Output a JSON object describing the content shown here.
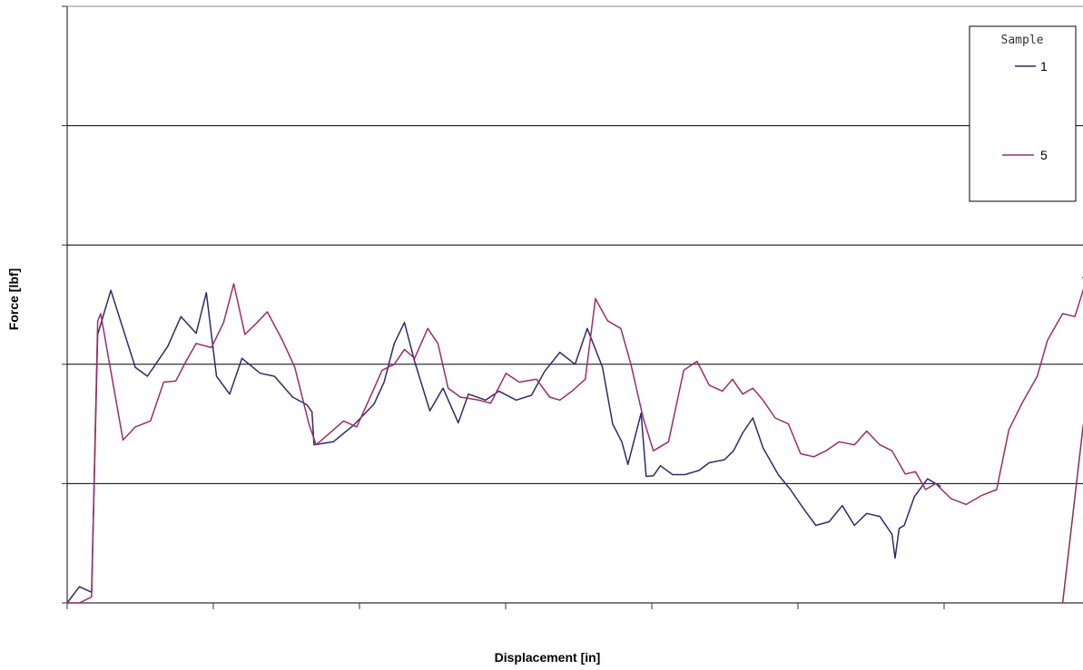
{
  "chart_data": {
    "type": "line",
    "title": "",
    "xlabel": "Displacement [in]",
    "ylabel": "Force [lbf]",
    "xlim": [
      0,
      1000
    ],
    "ylim": [
      0,
      1000
    ],
    "x_tick_count": 7,
    "y_gridlines": 4,
    "grid": "horizontal",
    "legend": {
      "title": "Sample",
      "placement": "top-right",
      "entries": [
        "1",
        "5"
      ]
    },
    "series": [
      {
        "name": "1",
        "color": "#2f2b6b",
        "points": [
          [
            0,
            0
          ],
          [
            12,
            27
          ],
          [
            24,
            18
          ],
          [
            30,
            450
          ],
          [
            43,
            524
          ],
          [
            67,
            395
          ],
          [
            79,
            380
          ],
          [
            99,
            430
          ],
          [
            112,
            480
          ],
          [
            127,
            452
          ],
          [
            137,
            520
          ],
          [
            147,
            380
          ],
          [
            160,
            350
          ],
          [
            172,
            410
          ],
          [
            190,
            385
          ],
          [
            204,
            380
          ],
          [
            222,
            345
          ],
          [
            236,
            332
          ],
          [
            241,
            320
          ],
          [
            243,
            265
          ],
          [
            262,
            270
          ],
          [
            282,
            298
          ],
          [
            302,
            333
          ],
          [
            312,
            370
          ],
          [
            322,
            435
          ],
          [
            332,
            470
          ],
          [
            342,
            405
          ],
          [
            357,
            322
          ],
          [
            370,
            360
          ],
          [
            385,
            302
          ],
          [
            395,
            350
          ],
          [
            412,
            340
          ],
          [
            425,
            355
          ],
          [
            442,
            340
          ],
          [
            457,
            348
          ],
          [
            470,
            388
          ],
          [
            485,
            420
          ],
          [
            500,
            400
          ],
          [
            512,
            460
          ],
          [
            527,
            395
          ],
          [
            537,
            300
          ],
          [
            546,
            270
          ],
          [
            552,
            232
          ],
          [
            565,
            318
          ],
          [
            570,
            212
          ],
          [
            577,
            213
          ],
          [
            584,
            230
          ],
          [
            596,
            215
          ],
          [
            608,
            215
          ],
          [
            622,
            222
          ],
          [
            632,
            235
          ],
          [
            647,
            240
          ],
          [
            656,
            255
          ],
          [
            665,
            285
          ],
          [
            675,
            310
          ],
          [
            685,
            260
          ],
          [
            700,
            215
          ],
          [
            712,
            190
          ],
          [
            724,
            160
          ],
          [
            737,
            130
          ],
          [
            750,
            136
          ],
          [
            763,
            163
          ],
          [
            775,
            130
          ],
          [
            787,
            150
          ],
          [
            800,
            145
          ],
          [
            812,
            115
          ],
          [
            815,
            75
          ],
          [
            819,
            125
          ],
          [
            824,
            130
          ],
          [
            834,
            178
          ],
          [
            847,
            208
          ],
          [
            860,
            195
          ]
        ]
      },
      {
        "name": "5",
        "color": "#9b2d6a",
        "points": [
          [
            0,
            0
          ],
          [
            12,
            0
          ],
          [
            24,
            10
          ],
          [
            30,
            472
          ],
          [
            33,
            485
          ],
          [
            55,
            273
          ],
          [
            67,
            295
          ],
          [
            82,
            305
          ],
          [
            95,
            370
          ],
          [
            107,
            372
          ],
          [
            117,
            405
          ],
          [
            127,
            435
          ],
          [
            142,
            428
          ],
          [
            154,
            470
          ],
          [
            164,
            535
          ],
          [
            175,
            450
          ],
          [
            187,
            470
          ],
          [
            197,
            488
          ],
          [
            212,
            440
          ],
          [
            224,
            395
          ],
          [
            238,
            300
          ],
          [
            245,
            265
          ],
          [
            262,
            290
          ],
          [
            272,
            305
          ],
          [
            285,
            295
          ],
          [
            297,
            340
          ],
          [
            310,
            390
          ],
          [
            322,
            400
          ],
          [
            332,
            425
          ],
          [
            342,
            410
          ],
          [
            355,
            460
          ],
          [
            365,
            435
          ],
          [
            375,
            360
          ],
          [
            387,
            345
          ],
          [
            405,
            340
          ],
          [
            417,
            335
          ],
          [
            432,
            385
          ],
          [
            445,
            370
          ],
          [
            462,
            375
          ],
          [
            475,
            345
          ],
          [
            485,
            340
          ],
          [
            497,
            355
          ],
          [
            510,
            375
          ],
          [
            520,
            510
          ],
          [
            532,
            473
          ],
          [
            545,
            460
          ],
          [
            555,
            400
          ],
          [
            567,
            310
          ],
          [
            577,
            255
          ],
          [
            592,
            270
          ],
          [
            607,
            390
          ],
          [
            620,
            405
          ],
          [
            632,
            365
          ],
          [
            645,
            355
          ],
          [
            655,
            375
          ],
          [
            665,
            350
          ],
          [
            675,
            360
          ],
          [
            685,
            340
          ],
          [
            697,
            310
          ],
          [
            710,
            300
          ],
          [
            722,
            250
          ],
          [
            735,
            245
          ],
          [
            747,
            255
          ],
          [
            760,
            270
          ],
          [
            775,
            265
          ],
          [
            787,
            288
          ],
          [
            800,
            265
          ],
          [
            812,
            255
          ],
          [
            825,
            216
          ],
          [
            835,
            220
          ],
          [
            845,
            190
          ],
          [
            855,
            200
          ],
          [
            870,
            175
          ],
          [
            885,
            165
          ],
          [
            900,
            180
          ],
          [
            915,
            190
          ],
          [
            927,
            290
          ],
          [
            940,
            335
          ],
          [
            955,
            380
          ],
          [
            965,
            440
          ],
          [
            980,
            485
          ],
          [
            992,
            480
          ],
          [
            1005,
            550
          ],
          [
            1017,
            600
          ],
          [
            1000,
            545
          ],
          [
            1003,
            560
          ],
          [
            1007,
            575
          ],
          [
            1010,
            590
          ],
          [
            1013,
            600
          ],
          [
            1017,
            605
          ]
        ]
      },
      {
        "name": "",
        "color": "#8a2b5f",
        "points": [
          [
            980,
            0
          ],
          [
            1000,
            295
          ],
          [
            1011,
            395
          ]
        ]
      }
    ]
  }
}
